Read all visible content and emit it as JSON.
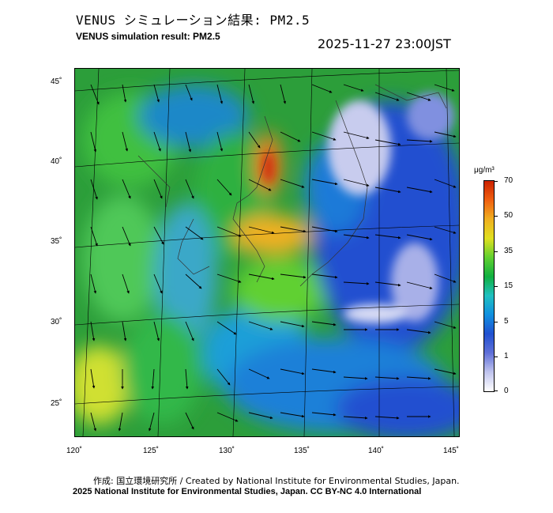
{
  "title_jp": "VENUS シミュレーション結果: PM2.5",
  "title_en": "VENUS simulation result: PM2.5",
  "timestamp": "2025-11-27 23:00JST",
  "lat_labels": [
    "45˚",
    "40˚",
    "35˚",
    "30˚",
    "25˚"
  ],
  "lon_labels": [
    "120˚",
    "125˚",
    "130˚",
    "135˚",
    "140˚",
    "145˚"
  ],
  "colorbar": {
    "unit": "μg/m³",
    "labels": [
      "70",
      "50",
      "35",
      "15",
      "5",
      "1",
      "0"
    ],
    "colors": [
      "#cc2200",
      "#f06010",
      "#f0b020",
      "#e0e020",
      "#60d030",
      "#10b040",
      "#20c0c0",
      "#1090e0",
      "#2050d0",
      "#6070d8",
      "#c0c4ee",
      "#ffffff"
    ]
  },
  "credit_jp": "作成: 国立環境研究所 / Created by National Institute for Environmental Studies, Japan.",
  "credit_en": "2025 National Institute for Environmental Studies, Japan. CC BY-NC 4.0 International"
}
